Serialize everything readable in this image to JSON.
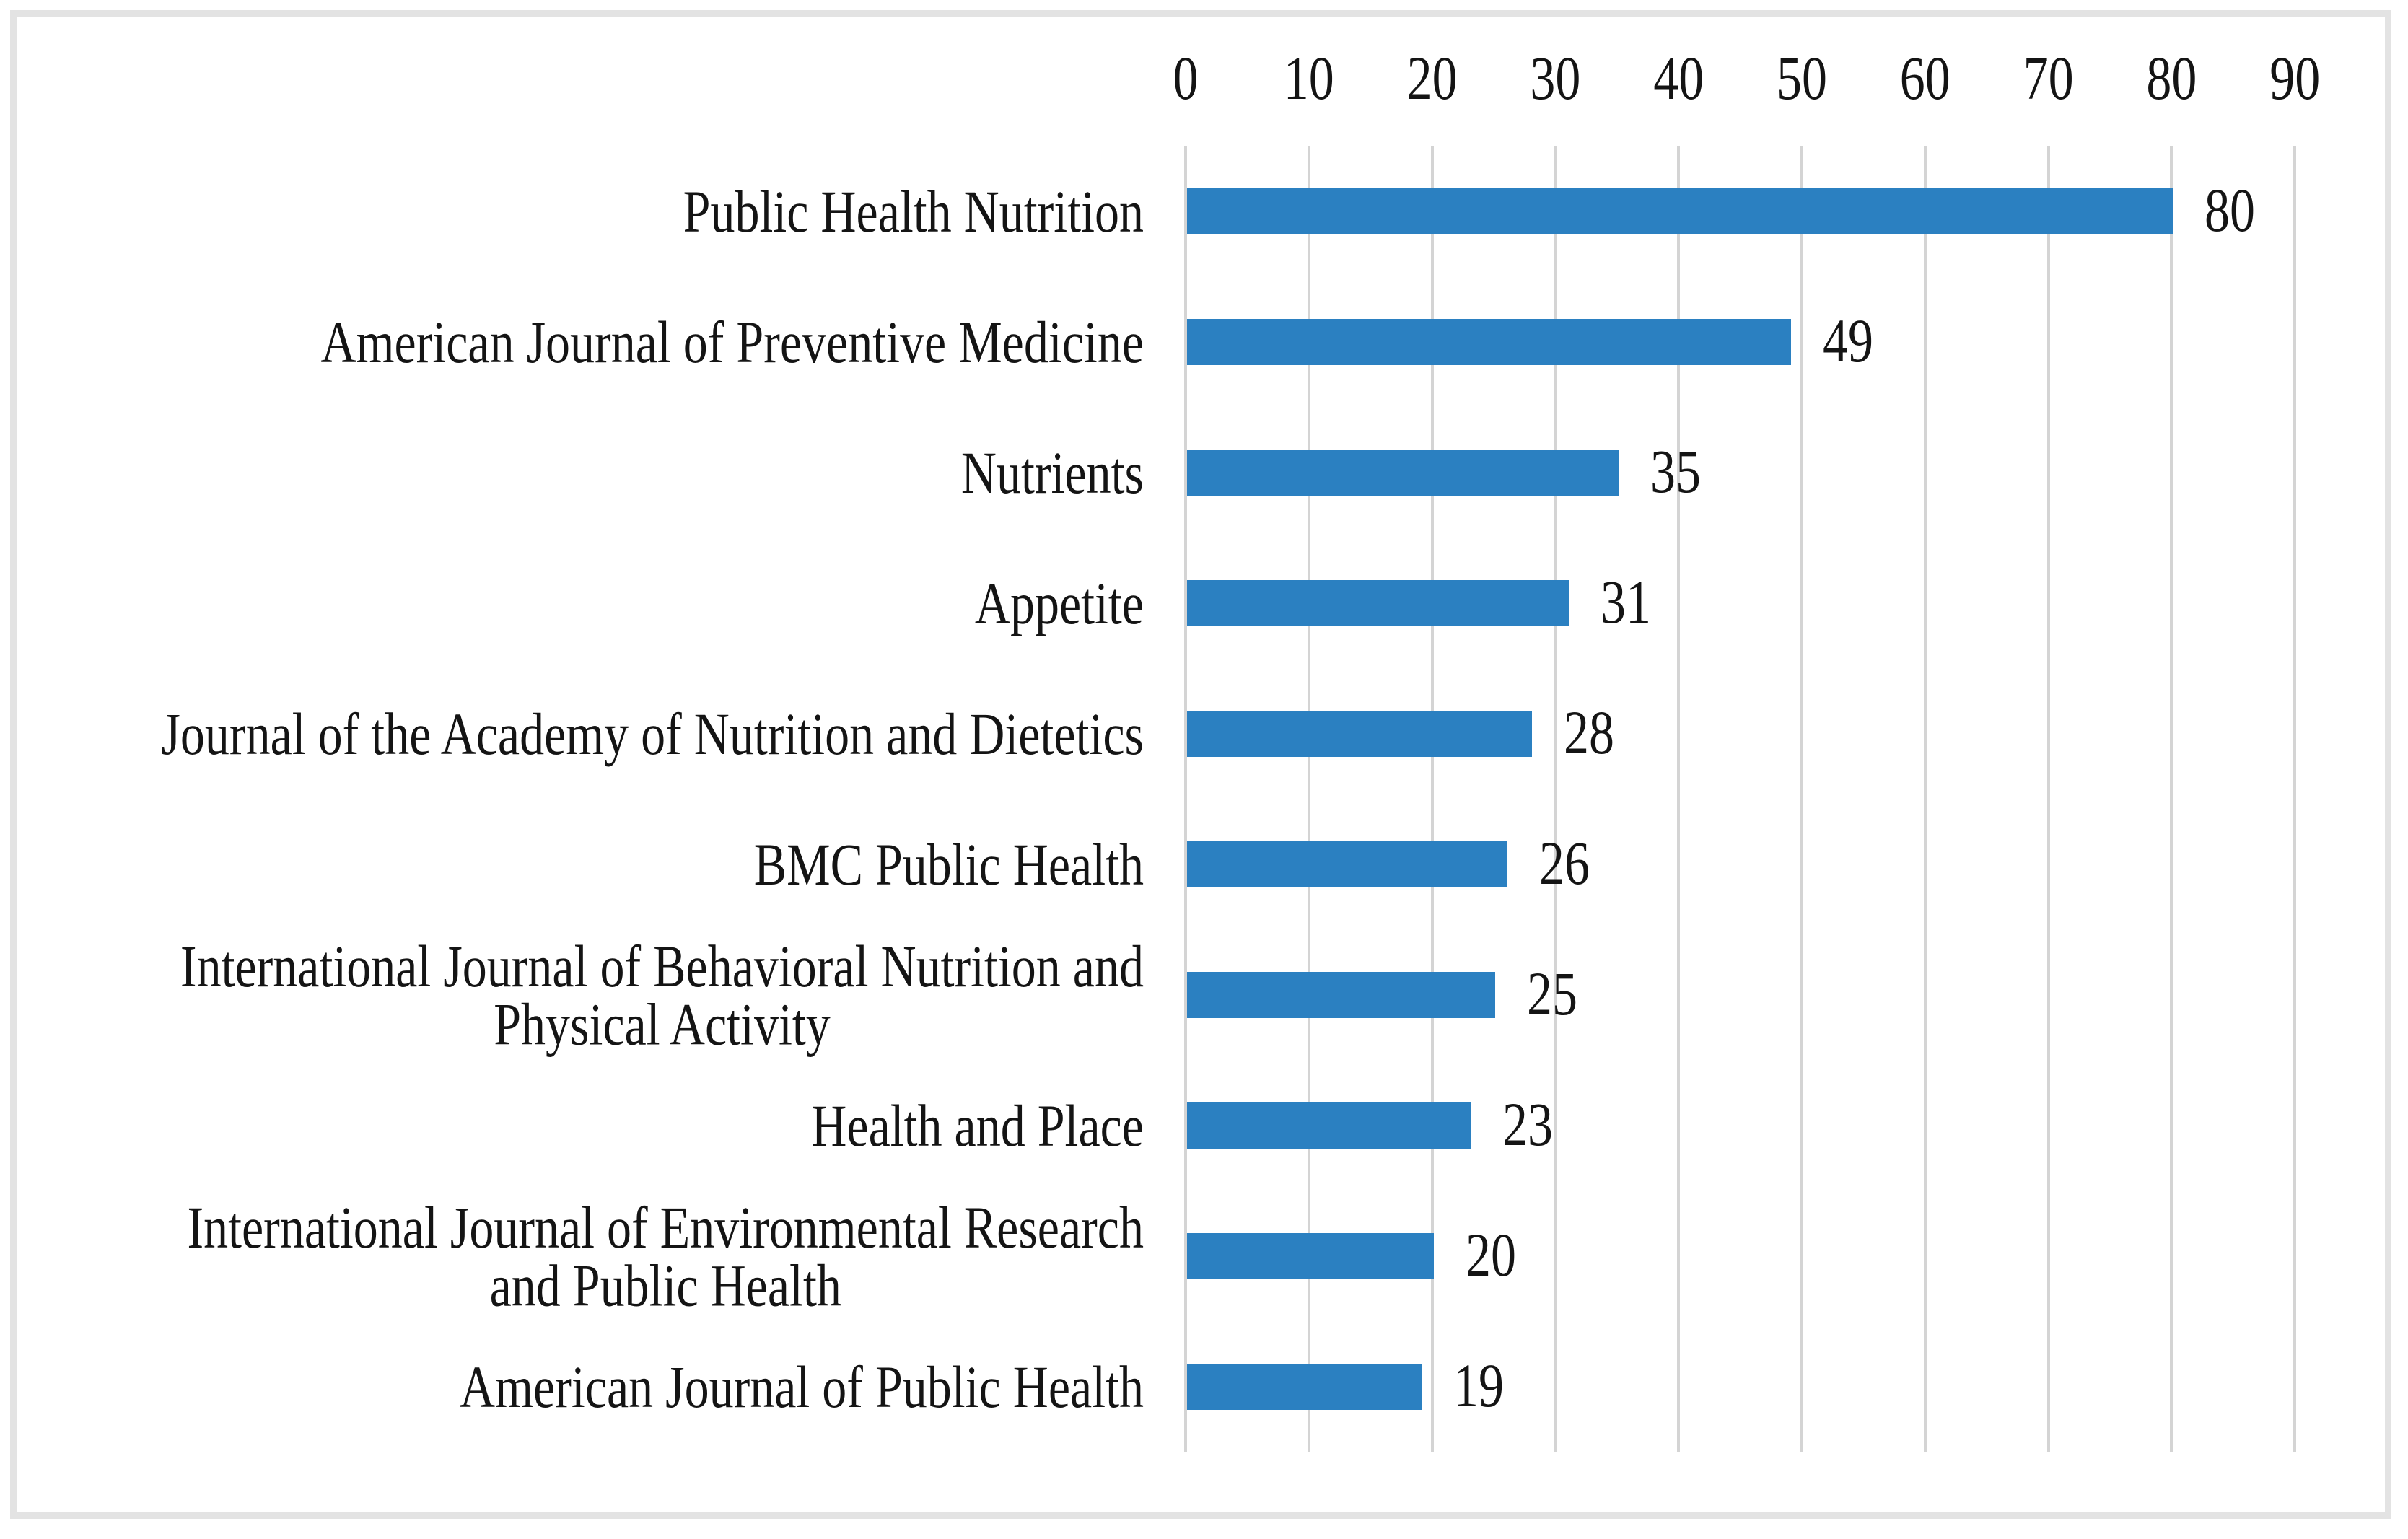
{
  "chart_data": {
    "type": "bar",
    "orientation": "horizontal",
    "title": "",
    "xlabel": "",
    "ylabel": "",
    "categories": [
      "Public Health Nutrition",
      "American Journal of Preventive Medicine",
      "Nutrients",
      "Appetite",
      "Journal of the Academy of Nutrition and Dietetics",
      "BMC Public Health",
      "International Journal of Behavioral Nutrition and\nPhysical Activity",
      "Health and Place",
      "International Journal of Environmental Research\nand Public Health",
      "American Journal of Public Health"
    ],
    "values": [
      80,
      49,
      35,
      31,
      28,
      26,
      25,
      23,
      20,
      19
    ],
    "x_ticks": [
      "0",
      "10",
      "20",
      "30",
      "40",
      "50",
      "60",
      "70",
      "80",
      "90"
    ],
    "xlim": [
      0,
      90
    ],
    "axis_position": "top",
    "grid": true,
    "data_labels": true,
    "legend": "none",
    "bar_color": "#2b80c1",
    "gridline_color": "#d4d4d4",
    "frame_color": "#e3e3e3",
    "text_color": "#141414"
  }
}
